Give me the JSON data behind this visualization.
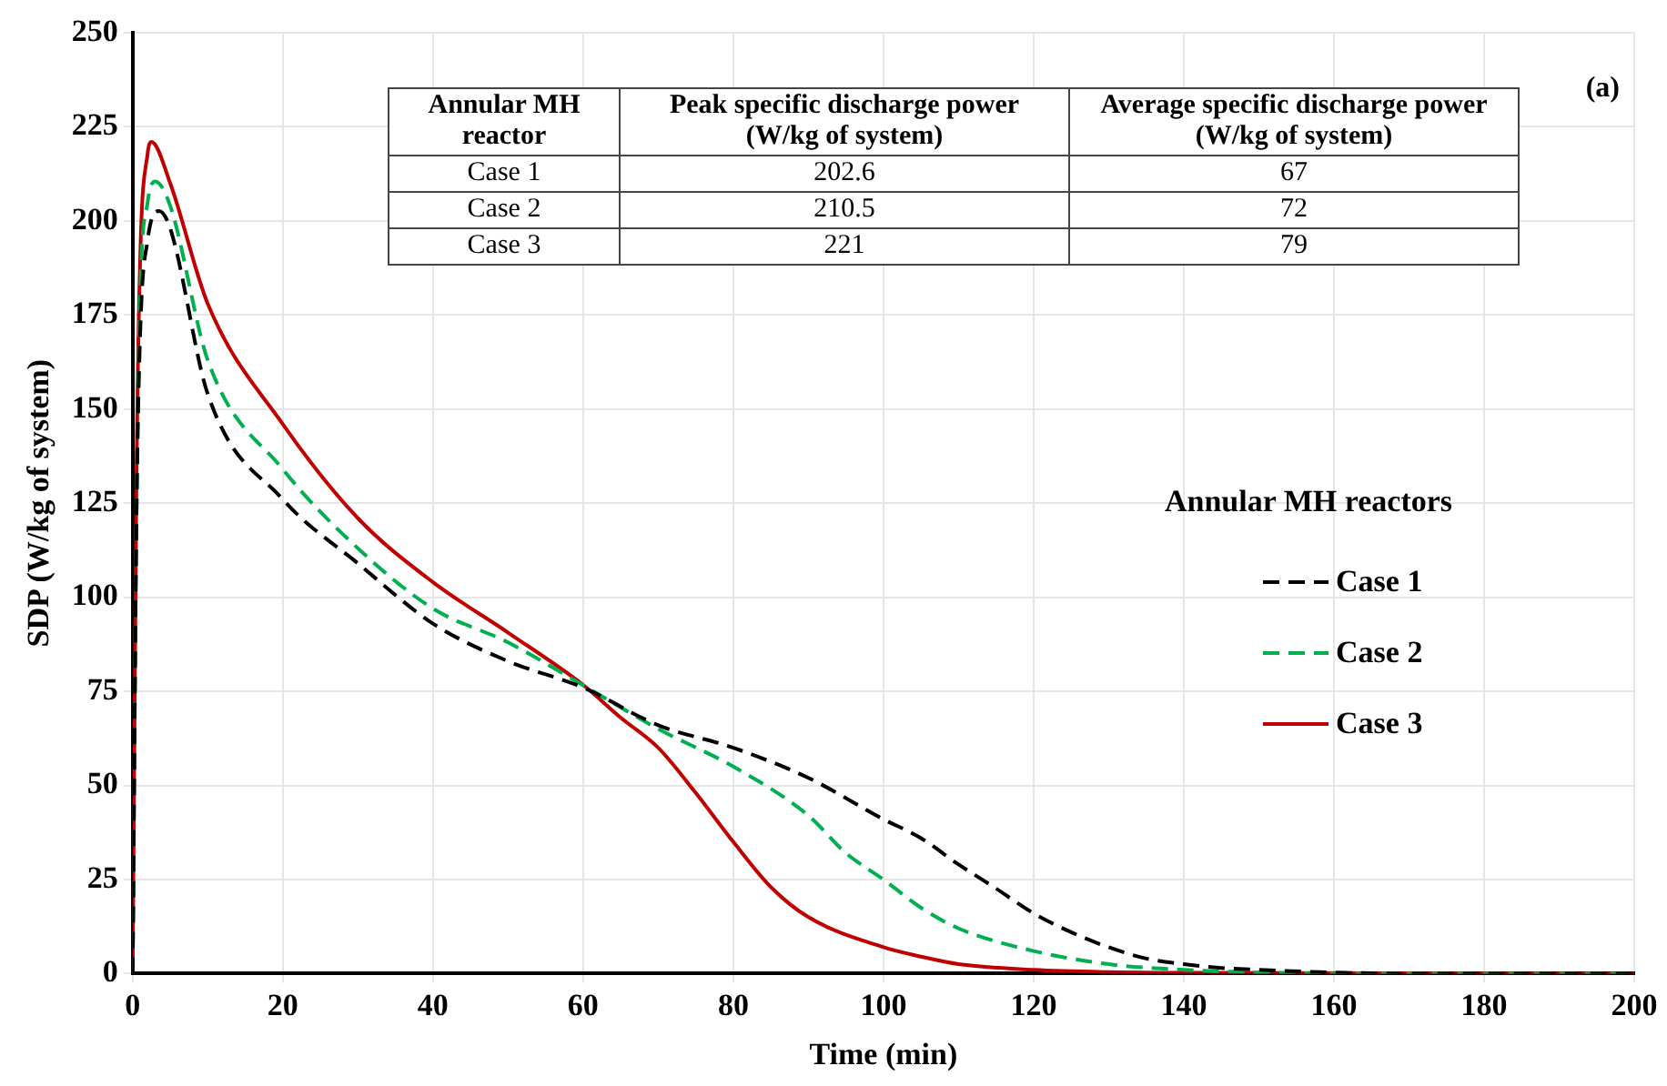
{
  "chart_data": {
    "type": "line",
    "xlabel": "Time (min)",
    "ylabel": "SDP (W/kg of system)",
    "legend_title": "Annular MH reactors",
    "xlim": [
      0,
      200
    ],
    "xticks": [
      0,
      20,
      40,
      60,
      80,
      100,
      120,
      140,
      160,
      180,
      200
    ],
    "ylim": [
      0,
      250
    ],
    "yticks": [
      0,
      25,
      50,
      75,
      100,
      125,
      150,
      175,
      200,
      225,
      250
    ],
    "grid": true,
    "legend": "right",
    "marker": "none",
    "annotations": [
      "(a)",
      "Annular MH reactor",
      "Peak specific discharge power (W/kg of system)",
      "Average specific discharge power (W/kg of system)",
      "Case 1",
      "202.6",
      "67",
      "Case 2",
      "210.5",
      "72",
      "Case 3",
      "221",
      "79"
    ],
    "series": [
      {
        "name": "Case 1",
        "color": "#000000",
        "line_style": "dashed",
        "x": [
          0,
          0.5,
          1,
          2,
          3.5,
          5,
          10,
          20,
          30,
          40,
          50,
          60,
          70,
          80,
          90,
          100,
          105,
          110,
          115,
          120,
          125,
          130,
          135,
          140,
          145,
          150,
          160,
          170,
          200
        ],
        "values": [
          0,
          120,
          170,
          195,
          202.6,
          198,
          154,
          126,
          109,
          93,
          83,
          76,
          66,
          60,
          52,
          41,
          36,
          29,
          22.6,
          16,
          11,
          7,
          4,
          2.5,
          1.5,
          1,
          0.3,
          0,
          0
        ]
      },
      {
        "name": "Case 2",
        "color": "#00b050",
        "line_style": "dashed",
        "x": [
          0,
          0.5,
          1,
          2,
          3,
          5,
          10,
          20,
          30,
          40,
          50,
          60,
          70,
          80,
          90,
          95,
          100,
          105,
          110,
          120,
          130,
          140,
          150,
          160,
          200
        ],
        "values": [
          0,
          120,
          180,
          205,
          210.5,
          204,
          163,
          134,
          113,
          97,
          88,
          76.6,
          65,
          55,
          42,
          32,
          25,
          17.5,
          12,
          6,
          2.5,
          1,
          0.3,
          0,
          0
        ]
      },
      {
        "name": "Case 3",
        "color": "#c00000",
        "line_style": "solid",
        "x": [
          0,
          0.5,
          1,
          2,
          2.5,
          5,
          10,
          20,
          30,
          40,
          50,
          60,
          65,
          70,
          75,
          80,
          85,
          90,
          100,
          105,
          110,
          120,
          130,
          140,
          200
        ],
        "values": [
          0,
          130,
          190,
          218,
          221,
          210,
          178,
          146,
          121,
          104,
          90.6,
          76.7,
          68,
          60,
          48,
          35,
          23,
          15,
          7,
          4.5,
          2.5,
          1,
          0.4,
          0.2,
          0
        ]
      }
    ]
  }
}
